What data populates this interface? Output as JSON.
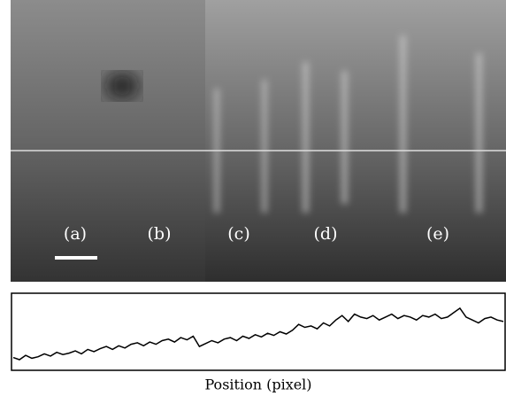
{
  "figure": {
    "panel_labels": [
      "(a)",
      "(b)",
      "(c)",
      "(d)",
      "(e)"
    ],
    "profile": {
      "type": "line",
      "xlabel": "Position (pixel)",
      "ylim": [
        0,
        100
      ],
      "color": "#000000",
      "values": [
        15,
        12,
        18,
        14,
        16,
        20,
        17,
        22,
        19,
        21,
        24,
        20,
        26,
        23,
        27,
        30,
        26,
        31,
        28,
        33,
        35,
        31,
        36,
        33,
        38,
        40,
        36,
        42,
        39,
        44,
        30,
        34,
        38,
        35,
        40,
        42,
        38,
        44,
        41,
        46,
        43,
        48,
        45,
        50,
        47,
        52,
        60,
        56,
        58,
        54,
        62,
        58,
        66,
        72,
        64,
        74,
        70,
        68,
        72,
        66,
        70,
        74,
        68,
        72,
        70,
        66,
        72,
        70,
        74,
        68,
        70,
        76,
        82,
        70,
        66,
        62,
        68,
        70,
        66,
        64
      ]
    }
  }
}
